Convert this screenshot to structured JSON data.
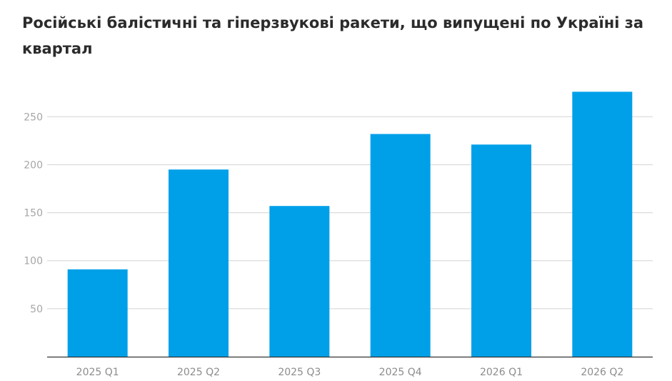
{
  "chart_data": {
    "type": "bar",
    "title": "Російські балістичні та гіперзвукові ракети, що випущені по Україні за квартал",
    "categories": [
      "2025 Q1",
      "2025 Q2",
      "2025 Q3",
      "2025 Q4",
      "2026 Q1",
      "2026 Q2"
    ],
    "series": [
      {
        "values": [
          91,
          195,
          157,
          232,
          221,
          276
        ]
      }
    ],
    "ylim": [
      0,
      280
    ],
    "yticks": [
      50,
      100,
      150,
      200,
      250
    ],
    "ytick_labels": [
      "50",
      "100",
      "150",
      "200",
      "250"
    ],
    "grid": true,
    "legend": "none",
    "colors": {
      "bar": "#00a0e9",
      "grid": "#d3d3d3",
      "axis": "#333333"
    }
  }
}
